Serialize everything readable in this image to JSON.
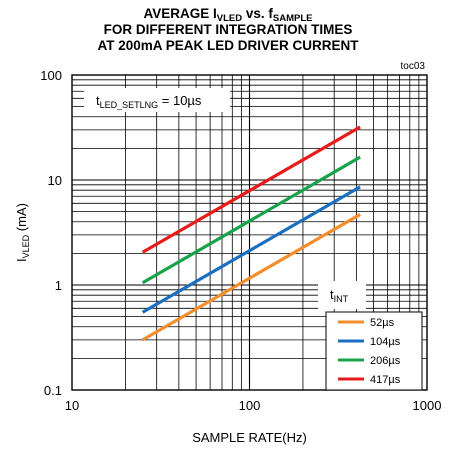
{
  "chart_data": {
    "type": "line",
    "title_lines": [
      {
        "parts": [
          "AVERAGE I",
          "VLED",
          " vs. f",
          "SAMPLE"
        ]
      },
      {
        "parts": [
          "FOR DIFFERENT INTEGRATION TIMES"
        ]
      },
      {
        "parts": [
          "AT 200mA PEAK LED DRIVER CURRENT"
        ]
      }
    ],
    "figure_id": "toc03",
    "xlabel": "SAMPLE RATE(Hz)",
    "ylabel": {
      "main": "I",
      "sub": "VLED",
      "unit": " (mA)"
    },
    "x_scale": "log",
    "y_scale": "log",
    "xlim": [
      10,
      1000
    ],
    "ylim": [
      0.1,
      100
    ],
    "x_ticks": [
      {
        "value": 10,
        "label": "10"
      },
      {
        "value": 100,
        "label": "100"
      },
      {
        "value": 1000,
        "label": "1000"
      }
    ],
    "y_ticks": [
      {
        "value": 0.1,
        "label": "0.1"
      },
      {
        "value": 1,
        "label": "1"
      },
      {
        "value": 10,
        "label": "10"
      },
      {
        "value": 100,
        "label": "100"
      }
    ],
    "grid": true,
    "annotation": {
      "main": "t",
      "sub": "LED_SETLNG",
      "rest": " = 10µs"
    },
    "legend": {
      "title_main": "t",
      "title_sub": "INT",
      "placement": "bottom-right"
    },
    "series": [
      {
        "name": "52µs",
        "color": "#f28e2b",
        "x": [
          25,
          420
        ],
        "y": [
          0.3,
          4.7
        ]
      },
      {
        "name": "104µs",
        "color": "#1a6fc1",
        "x": [
          25,
          420
        ],
        "y": [
          0.55,
          8.6
        ]
      },
      {
        "name": "206µs",
        "color": "#17a34a",
        "x": [
          25,
          420
        ],
        "y": [
          1.05,
          16.5
        ]
      },
      {
        "name": "417µs",
        "color": "#e81b1b",
        "x": [
          25,
          420
        ],
        "y": [
          2.05,
          32
        ]
      }
    ]
  }
}
